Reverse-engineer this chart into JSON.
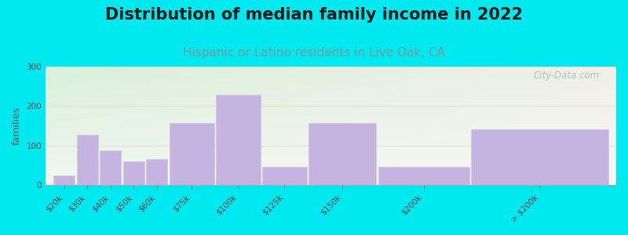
{
  "title": "Distribution of median family income in 2022",
  "subtitle": "Hispanic or Latino residents in Live Oak, CA",
  "categories": [
    "$20k",
    "$30k",
    "$40k",
    "$50k",
    "$60k",
    "$75k",
    "$100k",
    "$125k",
    "$150k",
    "$200k",
    "> $200k"
  ],
  "values": [
    25,
    127,
    87,
    60,
    65,
    157,
    228,
    45,
    157,
    45,
    142
  ],
  "bin_lefts": [
    0,
    1,
    2,
    3,
    4,
    5,
    7,
    9,
    11,
    14,
    18
  ],
  "bin_widths": [
    1,
    1,
    1,
    1,
    1,
    2,
    2,
    2,
    3,
    4,
    6
  ],
  "bar_color": "#c5b3e0",
  "bar_edge_color": "#d4c4ea",
  "background_outer": "#00e8f0",
  "background_plot_tl": "#d8f0d8",
  "background_plot_tr": "#f0efe8",
  "background_plot_bottom": "#f8f8f4",
  "ylabel": "families",
  "ylim": [
    0,
    300
  ],
  "yticks": [
    0,
    100,
    200,
    300
  ],
  "watermark": "City-Data.com",
  "title_fontsize": 15,
  "subtitle_fontsize": 11,
  "subtitle_color": "#7a9a9a",
  "tick_fontsize": 7.5,
  "title_color": "#1a1a1a"
}
